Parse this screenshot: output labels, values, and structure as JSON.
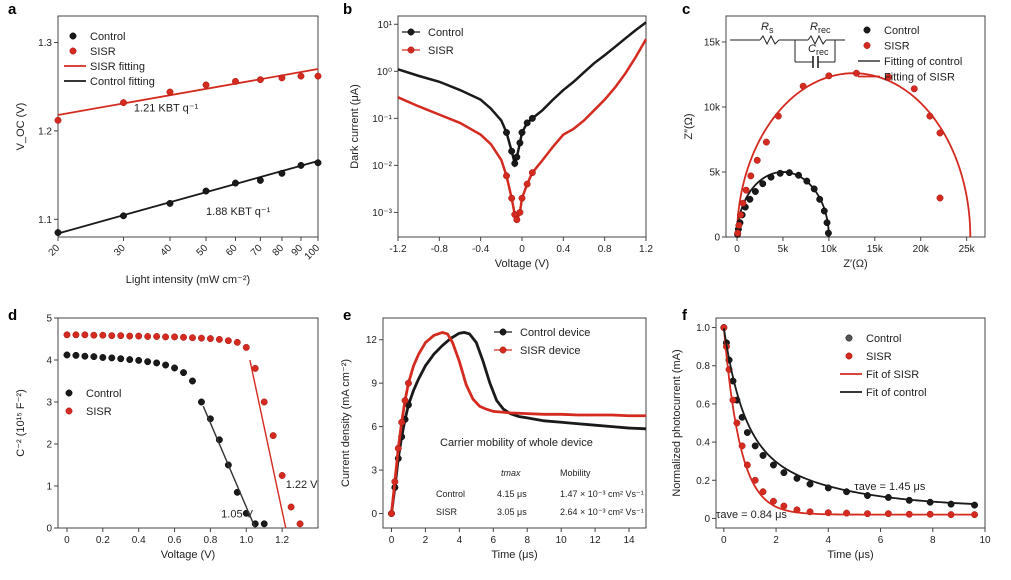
{
  "colors": {
    "black_series": "#1a1a1a",
    "red_series": "#d42a20",
    "axis": "#444444"
  },
  "chart_data": [
    {
      "id": "a",
      "panel_label": "a",
      "type": "scatter",
      "xlabel": "Light intensity (mW cm⁻²)",
      "ylabel": "V_OC (V)",
      "xscale": "log",
      "xlim": [
        20,
        100
      ],
      "ylim": [
        1.08,
        1.33
      ],
      "xticks": [
        20,
        30,
        40,
        50,
        60,
        70,
        80,
        90,
        100
      ],
      "xtick_labels": [
        "20",
        "30",
        "40",
        "50",
        "60",
        "70",
        "80",
        "90",
        "100"
      ],
      "yticks": [
        1.1,
        1.2,
        1.3
      ],
      "ytick_labels": [
        "1.1",
        "1.2",
        "1.3"
      ],
      "legend": [
        "Control",
        "SISR",
        "SISR fitting",
        "Control fitting"
      ],
      "series": [
        {
          "name": "Control",
          "color": "black",
          "x": [
            20,
            30,
            40,
            50,
            60,
            70,
            80,
            90,
            100
          ],
          "y": [
            1.085,
            1.104,
            1.118,
            1.132,
            1.141,
            1.144,
            1.152,
            1.161,
            1.164
          ]
        },
        {
          "name": "SISR",
          "color": "red",
          "x": [
            20,
            30,
            40,
            50,
            60,
            70,
            80,
            90,
            100
          ],
          "y": [
            1.212,
            1.232,
            1.244,
            1.252,
            1.256,
            1.258,
            1.26,
            1.262,
            1.262
          ]
        }
      ],
      "fits": [
        {
          "name": "SISR fitting",
          "color": "red",
          "x": [
            20,
            100
          ],
          "y": [
            1.218,
            1.27
          ]
        },
        {
          "name": "Control fitting",
          "color": "black",
          "x": [
            20,
            100
          ],
          "y": [
            1.084,
            1.166
          ]
        }
      ],
      "annotations": [
        {
          "text": "1.21 KBT q⁻¹",
          "x": 32,
          "y": 1.222
        },
        {
          "text": "1.88 KBT q⁻¹",
          "x": 50,
          "y": 1.105
        }
      ]
    },
    {
      "id": "b",
      "panel_label": "b",
      "type": "line",
      "xlabel": "Voltage (V)",
      "ylabel": "Dark current (μA)",
      "yscale": "log",
      "xlim": [
        -1.2,
        1.2
      ],
      "ylim": [
        0.0003,
        15
      ],
      "xticks": [
        -1.2,
        -0.8,
        -0.4,
        0,
        0.4,
        0.8,
        1.2
      ],
      "xtick_labels": [
        "-1.2",
        "-0.8",
        "-0.4",
        "0",
        "0.4",
        "0.8",
        "1.2"
      ],
      "yticks": [
        0.001,
        0.01,
        0.1,
        1,
        10
      ],
      "ytick_labels": [
        "10⁻³",
        "10⁻²",
        "10⁻¹",
        "10⁰",
        "10¹"
      ],
      "legend": [
        "Control",
        "SISR"
      ],
      "series": [
        {
          "name": "Control",
          "color": "black",
          "x": [
            -1.2,
            -1.0,
            -0.8,
            -0.6,
            -0.4,
            -0.3,
            -0.2,
            -0.15,
            -0.1,
            -0.07,
            -0.05,
            -0.02,
            0.0,
            0.05,
            0.1,
            0.2,
            0.3,
            0.4,
            0.5,
            0.6,
            0.7,
            0.8,
            0.9,
            1.0,
            1.1,
            1.2
          ],
          "y": [
            1.1,
            0.8,
            0.6,
            0.4,
            0.25,
            0.16,
            0.09,
            0.05,
            0.02,
            0.011,
            0.015,
            0.03,
            0.05,
            0.08,
            0.1,
            0.15,
            0.25,
            0.4,
            0.6,
            0.95,
            1.5,
            2.2,
            3.3,
            5.0,
            7.5,
            11.0
          ]
        },
        {
          "name": "SISR",
          "color": "red",
          "x": [
            -1.2,
            -1.0,
            -0.8,
            -0.6,
            -0.4,
            -0.3,
            -0.2,
            -0.15,
            -0.1,
            -0.07,
            -0.05,
            -0.02,
            0.0,
            0.05,
            0.1,
            0.2,
            0.3,
            0.4,
            0.5,
            0.6,
            0.7,
            0.8,
            0.9,
            1.0,
            1.1,
            1.2
          ],
          "y": [
            0.28,
            0.18,
            0.12,
            0.08,
            0.045,
            0.028,
            0.013,
            0.006,
            0.002,
            0.0009,
            0.0007,
            0.001,
            0.002,
            0.004,
            0.007,
            0.013,
            0.025,
            0.045,
            0.06,
            0.09,
            0.15,
            0.25,
            0.45,
            0.9,
            2.0,
            4.8
          ]
        }
      ]
    },
    {
      "id": "c",
      "panel_label": "c",
      "type": "scatter",
      "xlabel": "Z′(Ω)",
      "ylabel": "Z″(Ω)",
      "xlim": [
        -1200,
        27000
      ],
      "ylim": [
        0,
        17000
      ],
      "xticks": [
        0,
        5000,
        10000,
        15000,
        20000,
        25000
      ],
      "xtick_labels": [
        "0",
        "5k",
        "10k",
        "15k",
        "20k",
        "25k"
      ],
      "yticks": [
        0,
        5000,
        10000,
        15000
      ],
      "ytick_labels": [
        "0",
        "5k",
        "10k",
        "15k"
      ],
      "legend": [
        "Control",
        "SISR",
        "Fitting of control",
        "Fitting of SISR"
      ],
      "circuit_labels": {
        "rs": "R",
        "rs_sub": "s",
        "rrec": "R",
        "rrec_sub": "rec",
        "crec": "C",
        "crec_sub": "rec"
      },
      "series": [
        {
          "name": "Control",
          "color": "black",
          "x": [
            60,
            150,
            320,
            560,
            900,
            1400,
            2000,
            2800,
            3700,
            4700,
            5700,
            6700,
            7600,
            8400,
            9000,
            9500,
            9800,
            9950
          ],
          "y": [
            200,
            600,
            1100,
            1700,
            2300,
            2900,
            3500,
            4100,
            4600,
            4900,
            4950,
            4750,
            4300,
            3700,
            2900,
            2000,
            1100,
            300
          ]
        },
        {
          "name": "SISR",
          "color": "red",
          "x": [
            80,
            200,
            380,
            650,
            1000,
            1500,
            2200,
            3200,
            4500,
            7200,
            10000,
            13000,
            16500,
            19300,
            21000,
            22100
          ],
          "y": [
            300,
            900,
            1700,
            2600,
            3600,
            4700,
            5900,
            7300,
            9300,
            11600,
            12400,
            12600,
            12300,
            11400,
            9300,
            8000
          ]
        }
      ],
      "fits": [
        {
          "name": "Fitting of control",
          "color": "black",
          "center": 5000,
          "radius": 5000,
          "ymax": 5000
        },
        {
          "name": "Fitting of SISR",
          "color": "red",
          "center": 12700,
          "radius": 12700,
          "ymax": 12600
        }
      ],
      "extra_points": [
        {
          "series": "SISR",
          "x": 22100,
          "y": 3000
        }
      ]
    },
    {
      "id": "d",
      "panel_label": "d",
      "type": "scatter",
      "xlabel": "Voltage (V)",
      "ylabel": "C⁻² (10¹⁵ F⁻²)",
      "xlim": [
        -0.05,
        1.4
      ],
      "ylim": [
        0,
        5
      ],
      "xticks": [
        0,
        0.2,
        0.4,
        0.6,
        0.8,
        1.0,
        1.2
      ],
      "xtick_labels": [
        "0",
        "0.2",
        "0.4",
        "0.6",
        "0.8",
        "1.0",
        "1.2"
      ],
      "yticks": [
        0,
        1,
        2,
        3,
        4,
        5
      ],
      "ytick_labels": [
        "0",
        "1",
        "2",
        "3",
        "4",
        "5"
      ],
      "legend": [
        "Control",
        "SISR"
      ],
      "series": [
        {
          "name": "Control",
          "color": "black",
          "x": [
            0,
            0.05,
            0.1,
            0.15,
            0.2,
            0.25,
            0.3,
            0.35,
            0.4,
            0.45,
            0.5,
            0.55,
            0.6,
            0.65,
            0.7,
            0.75,
            0.8,
            0.85,
            0.9,
            0.95,
            1.0,
            1.05,
            1.1
          ],
          "y": [
            4.12,
            4.11,
            4.09,
            4.08,
            4.06,
            4.05,
            4.03,
            4.01,
            3.99,
            3.96,
            3.93,
            3.88,
            3.81,
            3.7,
            3.5,
            3.0,
            2.6,
            2.1,
            1.5,
            0.85,
            0.35,
            0.1,
            0.1
          ]
        },
        {
          "name": "SISR",
          "color": "red",
          "x": [
            0,
            0.05,
            0.1,
            0.15,
            0.2,
            0.25,
            0.3,
            0.35,
            0.4,
            0.45,
            0.5,
            0.55,
            0.6,
            0.65,
            0.7,
            0.75,
            0.8,
            0.85,
            0.9,
            0.95,
            1.0,
            1.05,
            1.1,
            1.15,
            1.2,
            1.25,
            1.3
          ],
          "y": [
            4.6,
            4.6,
            4.6,
            4.59,
            4.59,
            4.58,
            4.58,
            4.57,
            4.57,
            4.56,
            4.56,
            4.55,
            4.55,
            4.54,
            4.53,
            4.52,
            4.51,
            4.49,
            4.46,
            4.42,
            4.3,
            3.8,
            3.0,
            2.2,
            1.25,
            0.5,
            0.1
          ]
        }
      ],
      "fits": [
        {
          "name": "Control fit",
          "color": "black",
          "x": [
            0.76,
            1.05
          ],
          "y": [
            2.9,
            0.0
          ]
        },
        {
          "name": "SISR fit",
          "color": "red",
          "x": [
            1.02,
            1.22
          ],
          "y": [
            4.0,
            0.0
          ]
        }
      ],
      "annotations": [
        {
          "text": "1.05 V",
          "x": 0.86,
          "y": 0.25
        },
        {
          "text": "1.22 V",
          "x": 1.22,
          "y": 0.95
        }
      ]
    },
    {
      "id": "e",
      "panel_label": "e",
      "type": "line",
      "xlabel": "Time (μs)",
      "ylabel": "Current density (mA cm⁻²)",
      "xlim": [
        -0.5,
        15
      ],
      "ylim": [
        -1,
        13.5
      ],
      "xticks": [
        0,
        2,
        4,
        6,
        8,
        10,
        12,
        14
      ],
      "xtick_labels": [
        "0",
        "2",
        "4",
        "6",
        "8",
        "10",
        "12",
        "14"
      ],
      "yticks": [
        0,
        3,
        6,
        9,
        12
      ],
      "ytick_labels": [
        "0",
        "3",
        "6",
        "9",
        "12"
      ],
      "legend": [
        "Control device",
        "SISR device"
      ],
      "series": [
        {
          "name": "Control device",
          "color": "black",
          "x": [
            0,
            0.2,
            0.4,
            0.6,
            0.8,
            1.0,
            1.3,
            1.6,
            2.0,
            2.5,
            3.0,
            3.5,
            4.0,
            4.3,
            4.6,
            5.0,
            5.4,
            5.8,
            6.2,
            6.6,
            7.0,
            7.5,
            8.0,
            9.0,
            10.0,
            11.0,
            12.0,
            13.0,
            14.0,
            15.0
          ],
          "y": [
            0,
            1.8,
            3.8,
            5.3,
            6.5,
            7.5,
            8.5,
            9.3,
            10.2,
            11.0,
            11.6,
            12.1,
            12.45,
            12.5,
            12.4,
            11.8,
            10.5,
            9.0,
            7.8,
            7.2,
            6.9,
            6.7,
            6.6,
            6.4,
            6.3,
            6.2,
            6.1,
            6.0,
            5.9,
            5.85
          ]
        },
        {
          "name": "SISR device",
          "color": "red",
          "x": [
            0,
            0.2,
            0.4,
            0.6,
            0.8,
            1.0,
            1.3,
            1.6,
            2.0,
            2.5,
            3.0,
            3.3,
            3.6,
            4.0,
            4.4,
            4.8,
            5.2,
            5.6,
            6.0,
            7.0,
            8.0,
            9.0,
            10.0,
            11.0,
            12.0,
            13.0,
            14.0,
            15.0
          ],
          "y": [
            0,
            2.2,
            4.5,
            6.3,
            7.8,
            9.0,
            10.2,
            11.0,
            11.8,
            12.3,
            12.5,
            12.4,
            11.8,
            10.5,
            8.9,
            7.9,
            7.4,
            7.2,
            7.05,
            6.95,
            6.9,
            6.85,
            6.85,
            6.8,
            6.8,
            6.8,
            6.75,
            6.75
          ]
        }
      ],
      "inset_title": "Carrier mobility of whole device",
      "inset_table": {
        "headers": [
          "",
          "tmax",
          "Mobility"
        ],
        "rows": [
          [
            "Control",
            "4.15 μs",
            "1.47 × 10⁻³ cm² Vs⁻¹"
          ],
          [
            "SISR",
            "3.05 μs",
            "2.64 × 10⁻³ cm² Vs⁻¹"
          ]
        ]
      }
    },
    {
      "id": "f",
      "panel_label": "f",
      "type": "scatter",
      "xlabel": "Time (μs)",
      "ylabel": "Normalized photocurrent (mA)",
      "xlim": [
        -0.3,
        10
      ],
      "ylim": [
        -0.05,
        1.05
      ],
      "xticks": [
        0,
        2,
        4,
        6,
        8,
        10
      ],
      "xtick_labels": [
        "0",
        "2",
        "4",
        "6",
        "8",
        "10"
      ],
      "yticks": [
        0,
        0.2,
        0.4,
        0.6,
        0.8,
        1.0
      ],
      "ytick_labels": [
        "0",
        "0.2",
        "0.4",
        "0.6",
        "0.8",
        "1.0"
      ],
      "legend": [
        "Control",
        "SISR",
        "Fit of SISR",
        "Fit of control"
      ],
      "series": [
        {
          "name": "Control",
          "color": "black",
          "x": [
            0,
            0.1,
            0.2,
            0.35,
            0.5,
            0.7,
            0.9,
            1.2,
            1.5,
            1.9,
            2.3,
            2.8,
            3.3,
            4.0,
            4.7,
            5.5,
            6.3,
            7.1,
            7.9,
            8.7,
            9.6
          ],
          "y": [
            1.0,
            0.92,
            0.83,
            0.72,
            0.62,
            0.53,
            0.45,
            0.38,
            0.33,
            0.28,
            0.24,
            0.21,
            0.18,
            0.16,
            0.14,
            0.12,
            0.11,
            0.095,
            0.085,
            0.075,
            0.07
          ]
        },
        {
          "name": "SISR",
          "color": "red",
          "x": [
            0,
            0.1,
            0.2,
            0.35,
            0.5,
            0.7,
            0.9,
            1.2,
            1.5,
            1.9,
            2.3,
            2.8,
            3.3,
            4.0,
            4.7,
            5.5,
            6.3,
            7.1,
            7.9,
            8.7,
            9.6
          ],
          "y": [
            1.0,
            0.9,
            0.78,
            0.62,
            0.5,
            0.38,
            0.28,
            0.2,
            0.14,
            0.09,
            0.065,
            0.045,
            0.035,
            0.03,
            0.028,
            0.025,
            0.025,
            0.022,
            0.022,
            0.02,
            0.02
          ]
        }
      ],
      "fits": [
        {
          "name": "Fit of SISR",
          "color": "red",
          "A": 0.98,
          "tau": 0.84,
          "offset": 0.02
        },
        {
          "name": "Fit of control",
          "color": "black",
          "A": 0.9,
          "tau": 1.45,
          "offset": 0.06,
          "slow": 0.0
        }
      ],
      "annotations": [
        {
          "text": "τave = 1.45 μs",
          "x": 5.0,
          "y": 0.15
        },
        {
          "text": "τave = 0.84 μs",
          "x": 0.0,
          "y": 0.02
        }
      ]
    }
  ]
}
